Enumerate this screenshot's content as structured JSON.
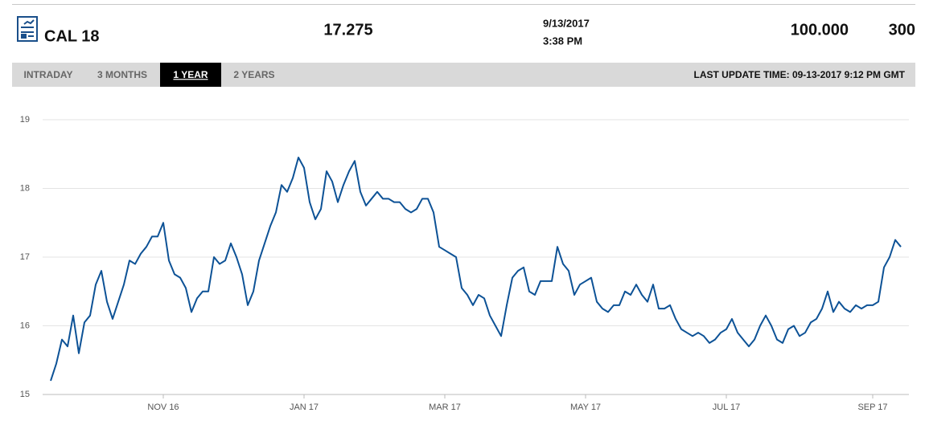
{
  "header": {
    "symbol": "CAL 18",
    "price": "17.275",
    "date": "9/13/2017",
    "time": "3:38 PM",
    "volume": "100.000",
    "open_interest": "300"
  },
  "tabs": [
    "INTRADAY",
    "3 MONTHS",
    "1 YEAR",
    "2 YEARS"
  ],
  "active_tab": 2,
  "last_update": "LAST UPDATE TIME: 09-13-2017 9:12 PM GMT",
  "chart_data": {
    "type": "line",
    "categories": [
      null,
      null,
      null,
      null,
      null,
      null,
      null,
      null,
      null,
      null,
      null,
      null,
      null,
      null,
      null,
      null,
      null,
      null,
      null,
      null,
      "NOV 16",
      null,
      null,
      null,
      null,
      null,
      null,
      null,
      null,
      null,
      null,
      null,
      null,
      null,
      null,
      null,
      null,
      null,
      null,
      null,
      null,
      null,
      null,
      null,
      null,
      "JAN 17",
      null,
      null,
      null,
      null,
      null,
      null,
      null,
      null,
      null,
      null,
      null,
      null,
      null,
      null,
      null,
      null,
      null,
      null,
      null,
      null,
      null,
      null,
      null,
      null,
      "MAR 17",
      null,
      null,
      null,
      null,
      null,
      null,
      null,
      null,
      null,
      null,
      null,
      null,
      null,
      null,
      null,
      null,
      null,
      null,
      null,
      null,
      null,
      null,
      null,
      null,
      "MAY 17",
      null,
      null,
      null,
      null,
      null,
      null,
      null,
      null,
      null,
      null,
      null,
      null,
      null,
      null,
      null,
      null,
      null,
      null,
      null,
      null,
      null,
      null,
      null,
      null,
      "JUL 17",
      null,
      null,
      null,
      null,
      null,
      null,
      null,
      null,
      null,
      null,
      null,
      null,
      null,
      null,
      null,
      null,
      null,
      null,
      null,
      null,
      null,
      null,
      null,
      null,
      null,
      "SEP 17",
      null,
      null,
      null,
      null,
      null
    ],
    "values": [
      15.2,
      15.45,
      15.8,
      15.7,
      16.15,
      15.6,
      16.05,
      16.15,
      16.6,
      16.8,
      16.35,
      16.1,
      16.35,
      16.6,
      16.95,
      16.9,
      17.05,
      17.15,
      17.3,
      17.3,
      17.5,
      16.95,
      16.75,
      16.7,
      16.55,
      16.2,
      16.4,
      16.5,
      16.5,
      17.0,
      16.9,
      16.95,
      17.2,
      17.0,
      16.75,
      16.3,
      16.5,
      16.95,
      17.2,
      17.45,
      17.65,
      18.05,
      17.95,
      18.15,
      18.45,
      18.3,
      17.8,
      17.55,
      17.7,
      18.25,
      18.1,
      17.8,
      18.05,
      18.25,
      18.4,
      17.95,
      17.75,
      17.85,
      17.95,
      17.85,
      17.85,
      17.8,
      17.8,
      17.7,
      17.65,
      17.7,
      17.85,
      17.85,
      17.65,
      17.15,
      17.1,
      17.05,
      17.0,
      16.55,
      16.45,
      16.3,
      16.45,
      16.4,
      16.15,
      16.0,
      15.85,
      16.3,
      16.7,
      16.8,
      16.85,
      16.5,
      16.45,
      16.65,
      16.65,
      16.65,
      17.15,
      16.9,
      16.8,
      16.45,
      16.6,
      16.65,
      16.7,
      16.35,
      16.25,
      16.2,
      16.3,
      16.3,
      16.5,
      16.45,
      16.6,
      16.45,
      16.35,
      16.6,
      16.25,
      16.25,
      16.3,
      16.1,
      15.95,
      15.9,
      15.85,
      15.9,
      15.85,
      15.75,
      15.8,
      15.9,
      15.95,
      16.1,
      15.9,
      15.8,
      15.7,
      15.8,
      16.0,
      16.15,
      16.0,
      15.8,
      15.75,
      15.95,
      16.0,
      15.85,
      15.9,
      16.05,
      16.1,
      16.25,
      16.5,
      16.2,
      16.35,
      16.25,
      16.2,
      16.3,
      16.25,
      16.3,
      16.3,
      16.35,
      16.85,
      17.0,
      17.25,
      17.15
    ],
    "color": "#0d5296",
    "ylim": [
      15,
      19
    ],
    "yticks": [
      15,
      16,
      17,
      18,
      19
    ],
    "grid": true
  }
}
